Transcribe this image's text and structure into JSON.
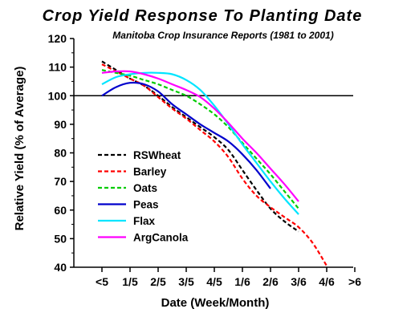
{
  "chart_data": {
    "type": "line",
    "title": "Crop Yield Response To Planting Date",
    "subtitle": "Manitoba Crop Insurance Reports (1981 to 2001)",
    "xlabel": "Date (Week/Month)",
    "ylabel": "Relative Yield (% of Average)",
    "categories": [
      "<5",
      "1/5",
      "2/5",
      "3/5",
      "4/5",
      "1/6",
      "2/6",
      "3/6",
      "4/6",
      ">6"
    ],
    "ylim": [
      40,
      120
    ],
    "yticks": [
      40,
      50,
      60,
      70,
      80,
      90,
      100,
      110,
      120
    ],
    "reference_line": 100,
    "legend_position": "lower-left",
    "series": [
      {
        "name": "RSWheat",
        "color": "#000000",
        "dash": true,
        "x": [
          0,
          0.5,
          1,
          1.5,
          2,
          2.5,
          3,
          3.5,
          4,
          4.5,
          5,
          5.5,
          6,
          6.5,
          7
        ],
        "values": [
          112,
          109,
          106,
          103.5,
          100,
          96,
          92.5,
          89,
          85.5,
          81,
          74,
          67,
          60.5,
          56,
          52.5
        ]
      },
      {
        "name": "Barley",
        "color": "#ff0000",
        "dash": true,
        "x": [
          0,
          0.5,
          1,
          1.5,
          2,
          2.5,
          3,
          3.5,
          4,
          4.5,
          5,
          5.5,
          6,
          6.5,
          7,
          7.5,
          8
        ],
        "values": [
          111,
          108.5,
          106,
          103.5,
          99.5,
          95.5,
          92,
          88,
          84,
          78.5,
          71,
          65,
          61,
          57.5,
          54,
          48.5,
          40.5
        ]
      },
      {
        "name": "Oats",
        "color": "#00cc00",
        "dash": true,
        "x": [
          0,
          0.5,
          1,
          1.5,
          2,
          2.5,
          3,
          3.5,
          4,
          4.5,
          5,
          5.5,
          6,
          6.5,
          7
        ],
        "values": [
          109,
          108,
          107,
          105.5,
          104,
          102,
          100,
          97,
          93.5,
          89,
          83.5,
          78,
          72.5,
          66.5,
          60.5
        ]
      },
      {
        "name": "Peas",
        "color": "#0000cc",
        "dash": false,
        "x": [
          0,
          0.5,
          1,
          1.5,
          2,
          2.5,
          3,
          3.5,
          4,
          4.5,
          5,
          5.5,
          6
        ],
        "values": [
          100,
          103,
          104.5,
          104,
          101.5,
          97,
          93.5,
          90,
          87,
          84,
          79.5,
          74,
          67.5
        ]
      },
      {
        "name": "Flax",
        "color": "#00e5ff",
        "dash": false,
        "x": [
          0,
          0.5,
          1,
          1.5,
          2,
          2.5,
          3,
          3.5,
          4,
          4.5,
          5,
          5.5,
          6,
          6.5,
          7
        ],
        "values": [
          104,
          106.5,
          107.5,
          108,
          108,
          107.5,
          105.5,
          102,
          96.5,
          90,
          83,
          76.5,
          70,
          64,
          58.5
        ]
      },
      {
        "name": "ArgCanola",
        "color": "#ff00ff",
        "dash": false,
        "x": [
          0,
          0.5,
          1,
          1.5,
          2,
          2.5,
          3,
          3.5,
          4,
          4.5,
          5,
          5.5,
          6,
          6.5,
          7
        ],
        "values": [
          108,
          108.5,
          108.5,
          107.5,
          106,
          104,
          102,
          99.5,
          95.5,
          90.5,
          85,
          80,
          74.5,
          69,
          63
        ]
      }
    ]
  }
}
